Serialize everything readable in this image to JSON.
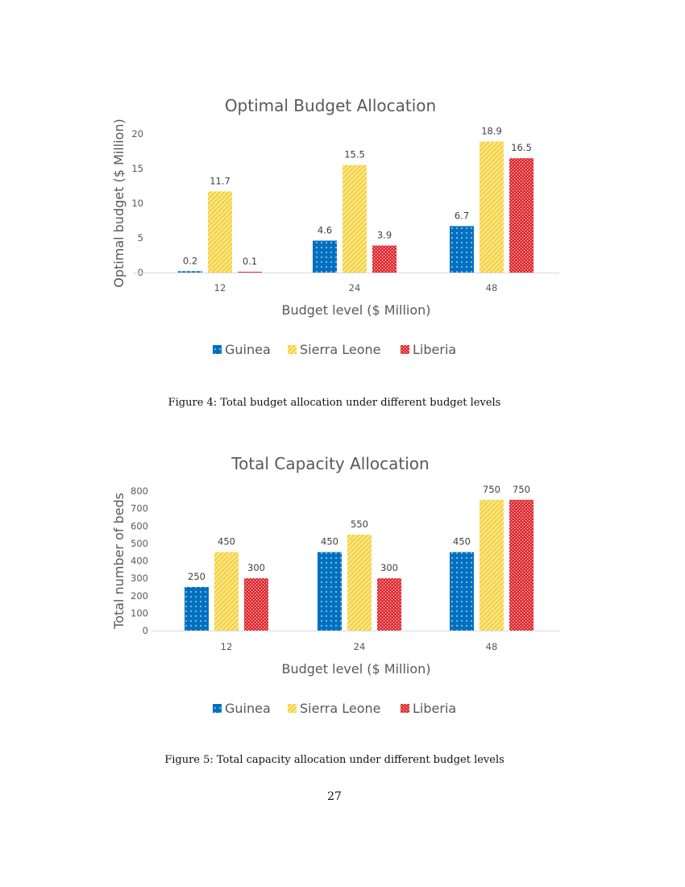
{
  "chart_data": [
    {
      "type": "bar",
      "title": "Optimal Budget Allocation",
      "xlabel": "Budget level ($ Million)",
      "ylabel": "Optimal budget ($ Million)",
      "categories": [
        "12",
        "24",
        "48"
      ],
      "ylim": [
        0,
        20
      ],
      "yticks": [
        0,
        5,
        10,
        15,
        20
      ],
      "grid": false,
      "legend": "bottom",
      "series": [
        {
          "name": "Guinea",
          "color": "#0070C0",
          "pattern": "dots",
          "values": [
            0.2,
            4.6,
            6.7
          ],
          "labels": [
            "0.2",
            "4.6",
            "6.7"
          ]
        },
        {
          "name": "Sierra Leone",
          "color": "#F5D33F",
          "pattern": "diagonal",
          "values": [
            11.7,
            15.5,
            18.9
          ],
          "labels": [
            "11.7",
            "15.5",
            "18.9"
          ]
        },
        {
          "name": "Liberia",
          "color": "#E0242C",
          "pattern": "checker",
          "values": [
            0.1,
            3.9,
            16.5
          ],
          "labels": [
            "0.1",
            "3.9",
            "16.5"
          ]
        }
      ]
    },
    {
      "type": "bar",
      "title": "Total Capacity Allocation",
      "xlabel": "Budget level ($ Million)",
      "ylabel": "Total number of beds",
      "categories": [
        "12",
        "24",
        "48"
      ],
      "ylim": [
        0,
        800
      ],
      "yticks": [
        0,
        100,
        200,
        300,
        400,
        500,
        600,
        700,
        800
      ],
      "grid": false,
      "legend": "bottom",
      "series": [
        {
          "name": "Guinea",
          "color": "#0070C0",
          "pattern": "dots",
          "values": [
            250,
            450,
            450
          ],
          "labels": [
            "250",
            "450",
            "450"
          ]
        },
        {
          "name": "Sierra Leone",
          "color": "#F5D33F",
          "pattern": "diagonal",
          "values": [
            450,
            550,
            750
          ],
          "labels": [
            "450",
            "550",
            "750"
          ]
        },
        {
          "name": "Liberia",
          "color": "#E0242C",
          "pattern": "checker",
          "values": [
            300,
            300,
            750
          ],
          "labels": [
            "300",
            "300",
            "750"
          ]
        }
      ]
    }
  ],
  "captions": {
    "figure4": "Figure 4: Total budget allocation under different budget levels",
    "figure5": "Figure 5: Total capacity allocation under different budget levels"
  },
  "page_number": "27"
}
